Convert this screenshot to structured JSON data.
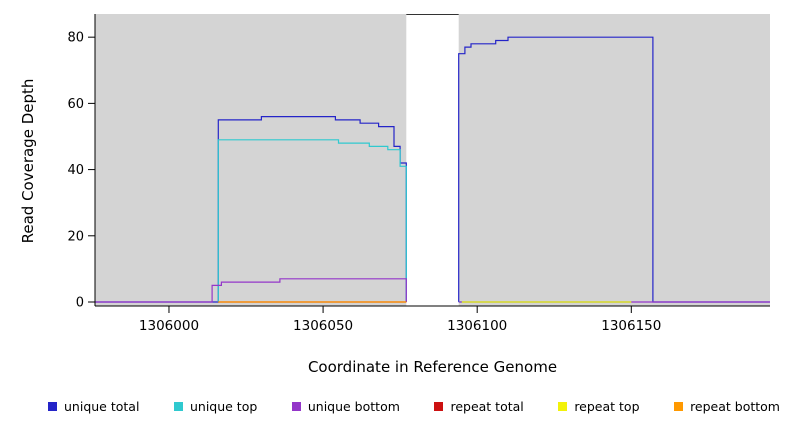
{
  "chart_data": {
    "type": "line",
    "title": "",
    "xlabel": "Coordinate in Reference Genome",
    "ylabel": "Read Coverage Depth",
    "xlim": [
      1305976,
      1306195
    ],
    "ylim": [
      0,
      87
    ],
    "xticks": [
      1306000,
      1306050,
      1306100,
      1306150
    ],
    "yticks": [
      0,
      20,
      40,
      60,
      80
    ],
    "grid": false,
    "legend_position": "bottom",
    "panel_color": "#d4d4d4",
    "gap_region": {
      "x0": 1306077,
      "x1": 1306094
    },
    "series": [
      {
        "name": "unique total",
        "color": "#2424c8",
        "segments": [
          [
            [
              1305976,
              0
            ],
            [
              1306016,
              0
            ],
            [
              1306016,
              55
            ],
            [
              1306030,
              55
            ],
            [
              1306030,
              56
            ],
            [
              1306054,
              56
            ],
            [
              1306054,
              55
            ],
            [
              1306062,
              55
            ],
            [
              1306062,
              54
            ],
            [
              1306068,
              54
            ],
            [
              1306068,
              53
            ],
            [
              1306073,
              53
            ],
            [
              1306073,
              47
            ],
            [
              1306075,
              47
            ],
            [
              1306075,
              42
            ],
            [
              1306077,
              42
            ],
            [
              1306077,
              0
            ]
          ],
          [
            [
              1306094,
              0
            ],
            [
              1306094,
              75
            ],
            [
              1306096,
              75
            ],
            [
              1306096,
              77
            ],
            [
              1306098,
              77
            ],
            [
              1306098,
              78
            ],
            [
              1306106,
              78
            ],
            [
              1306106,
              79
            ],
            [
              1306110,
              79
            ],
            [
              1306110,
              80
            ],
            [
              1306157,
              80
            ],
            [
              1306157,
              0
            ],
            [
              1306195,
              0
            ]
          ]
        ]
      },
      {
        "name": "unique top",
        "color": "#2fc9cf",
        "segments": [
          [
            [
              1306016,
              0
            ],
            [
              1306016,
              49
            ],
            [
              1306055,
              49
            ],
            [
              1306055,
              48
            ],
            [
              1306065,
              48
            ],
            [
              1306065,
              47
            ],
            [
              1306071,
              47
            ],
            [
              1306071,
              46
            ],
            [
              1306075,
              46
            ],
            [
              1306075,
              41
            ],
            [
              1306077,
              41
            ],
            [
              1306077,
              0
            ]
          ],
          [
            [
              1306094,
              0
            ],
            [
              1306150,
              0
            ]
          ]
        ]
      },
      {
        "name": "unique bottom",
        "color": "#9436c9",
        "segments": [
          [
            [
              1305976,
              0
            ],
            [
              1306014,
              0
            ],
            [
              1306014,
              5
            ],
            [
              1306017,
              5
            ],
            [
              1306017,
              6
            ],
            [
              1306036,
              6
            ],
            [
              1306036,
              7
            ],
            [
              1306077,
              7
            ],
            [
              1306077,
              0
            ]
          ],
          [
            [
              1306094,
              0
            ],
            [
              1306195,
              0
            ]
          ]
        ]
      },
      {
        "name": "repeat total",
        "color": "#cc1111",
        "segments": [
          [
            [
              1306016,
              0
            ],
            [
              1306077,
              0
            ]
          ]
        ]
      },
      {
        "name": "repeat top",
        "color": "#f2f20a",
        "segments": [
          [
            [
              1306095,
              0
            ],
            [
              1306150,
              0
            ]
          ]
        ]
      },
      {
        "name": "repeat bottom",
        "color": "#ff9900",
        "segments": [
          [
            [
              1306016,
              0
            ],
            [
              1306077,
              0
            ]
          ]
        ]
      }
    ]
  }
}
